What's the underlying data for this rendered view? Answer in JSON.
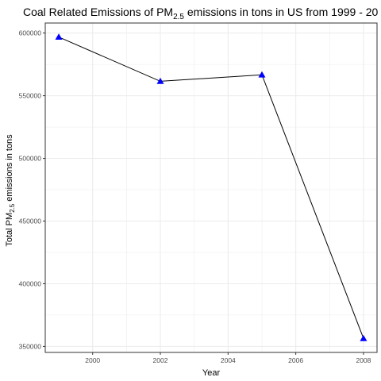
{
  "chart_data": {
    "type": "line",
    "title": {
      "prefix": "Coal Related Emissions of  PM",
      "subscript": "2.5",
      "suffix": " emissions in tons in US from 1999 - 20"
    },
    "xlabel": "Year",
    "ylabel": {
      "prefix": "Total PM",
      "subscript": "2.5",
      "suffix": " emissions in tons"
    },
    "x": [
      1999,
      2002,
      2005,
      2008
    ],
    "series": [
      {
        "values": [
          596800,
          561500,
          566700,
          356400
        ]
      }
    ],
    "xlim": [
      1998.6,
      2008.4
    ],
    "ylim": [
      345200,
      608000
    ],
    "x_ticks": [
      {
        "value": 2000,
        "label": "2000"
      },
      {
        "value": 2002,
        "label": "2002"
      },
      {
        "value": 2004,
        "label": "2004"
      },
      {
        "value": 2006,
        "label": "2006"
      },
      {
        "value": 2008,
        "label": "2008"
      }
    ],
    "y_ticks": [
      {
        "value": 350000,
        "label": "350000"
      },
      {
        "value": 400000,
        "label": "400000"
      },
      {
        "value": 450000,
        "label": "450000"
      },
      {
        "value": 500000,
        "label": "500000"
      },
      {
        "value": 550000,
        "label": "550000"
      },
      {
        "value": 600000,
        "label": "600000"
      }
    ],
    "grid": true,
    "marker": "triangle",
    "line_color": "#000000",
    "marker_color": "#0000ff",
    "grid_color": "#ebebeb",
    "panel_border_color": "#333333"
  }
}
